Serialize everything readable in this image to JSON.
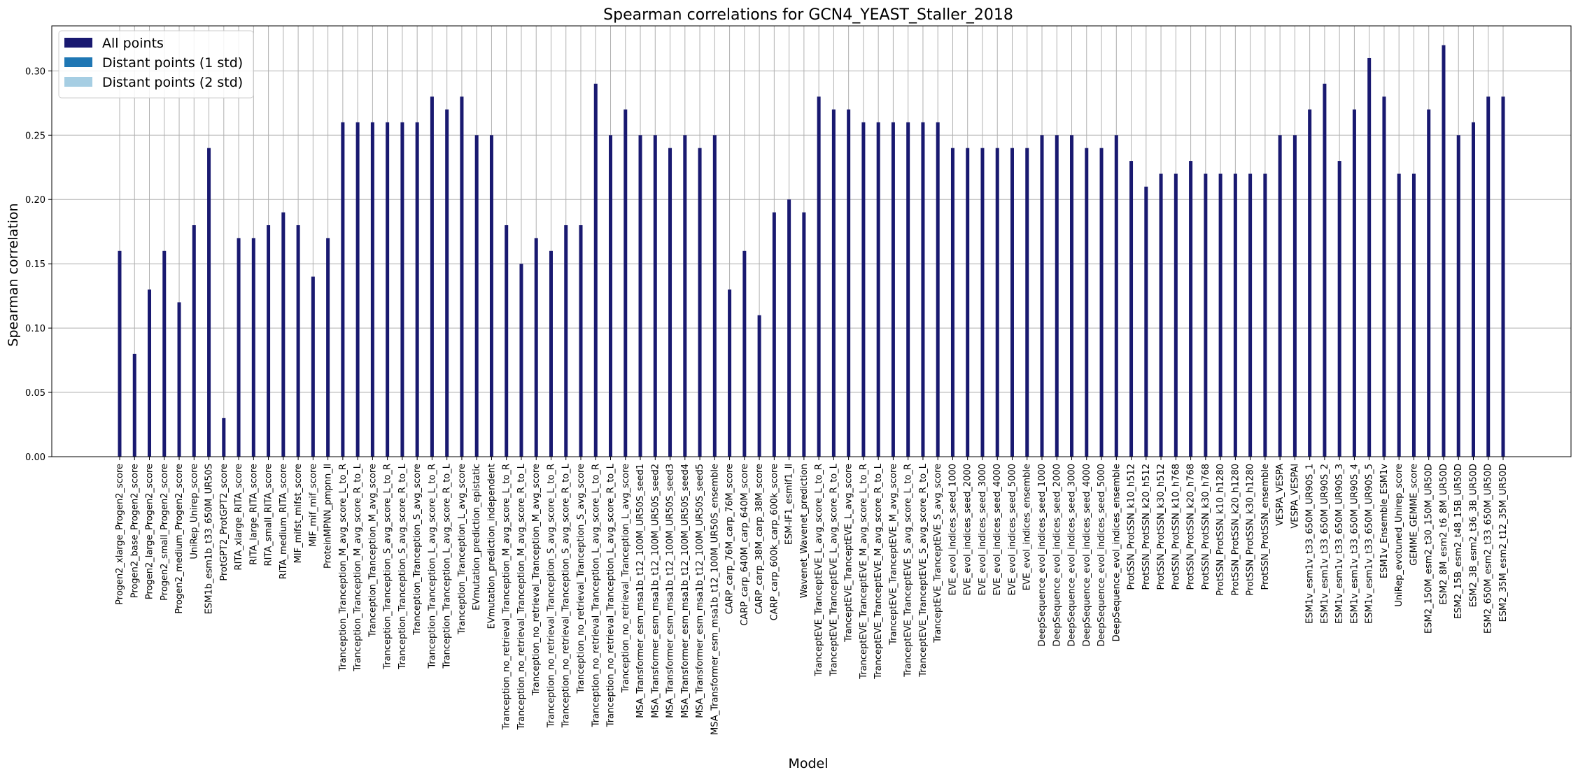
{
  "chart_data": {
    "type": "bar",
    "title": "Spearman correlations for GCN4_YEAST_Staller_2018",
    "xlabel": "Model",
    "ylabel": "Spearman correlation",
    "ylim": [
      0,
      0.335
    ],
    "yticks": [
      "0.00",
      "0.05",
      "0.10",
      "0.15",
      "0.20",
      "0.25",
      "0.30"
    ],
    "grid": true,
    "legend_position": "top-left",
    "colors": {
      "all": "#191970",
      "std1": "#1f77b4",
      "std2": "#a6cee3"
    },
    "series": [
      {
        "name": "All points"
      },
      {
        "name": "Distant points (1 std)"
      },
      {
        "name": "Distant points (2 std)"
      }
    ],
    "categories": [
      "Progen2_xlarge_Progen2_score",
      "Progen2_base_Progen2_score",
      "Progen2_large_Progen2_score",
      "Progen2_small_Progen2_score",
      "Progen2_medium_Progen2_score",
      "UniRep_Unirep_score",
      "ESM1b_esm1b_t33_650M_UR50S",
      "ProtGPT2_ProtGPT2_score",
      "RITA_xlarge_RITA_score",
      "RITA_large_RITA_score",
      "RITA_small_RITA_score",
      "RITA_medium_RITA_score",
      "MIF_mifst_mifst_score",
      "MIF_mif_mif_score",
      "ProteinMPNN_pmpnn_ll",
      "Tranception_Tranception_M_avg_score_L_to_R",
      "Tranception_Tranception_M_avg_score_R_to_L",
      "Tranception_Tranception_M_avg_score",
      "Tranception_Tranception_S_avg_score_L_to_R",
      "Tranception_Tranception_S_avg_score_R_to_L",
      "Tranception_Tranception_S_avg_score",
      "Tranception_Tranception_L_avg_score_L_to_R",
      "Tranception_Tranception_L_avg_score_R_to_L",
      "Tranception_Tranception_L_avg_score",
      "EVmutation_prediction_epistatic",
      "EVmutation_prediction_independent",
      "Tranception_no_retrieval_Tranception_M_avg_score_L_to_R",
      "Tranception_no_retrieval_Tranception_M_avg_score_R_to_L",
      "Tranception_no_retrieval_Tranception_M_avg_score",
      "Tranception_no_retrieval_Tranception_S_avg_score_L_to_R",
      "Tranception_no_retrieval_Tranception_S_avg_score_R_to_L",
      "Tranception_no_retrieval_Tranception_S_avg_score",
      "Tranception_no_retrieval_Tranception_L_avg_score_L_to_R",
      "Tranception_no_retrieval_Tranception_L_avg_score_R_to_L",
      "Tranception_no_retrieval_Tranception_L_avg_score",
      "MSA_Transformer_esm_msa1b_t12_100M_UR50S_seed1",
      "MSA_Transformer_esm_msa1b_t12_100M_UR50S_seed2",
      "MSA_Transformer_esm_msa1b_t12_100M_UR50S_seed3",
      "MSA_Transformer_esm_msa1b_t12_100M_UR50S_seed4",
      "MSA_Transformer_esm_msa1b_t12_100M_UR50S_seed5",
      "MSA_Transformer_esm_msa1b_t12_100M_UR50S_ensemble",
      "CARP_carp_76M_carp_76M_score",
      "CARP_carp_640M_carp_640M_score",
      "CARP_carp_38M_carp_38M_score",
      "CARP_carp_600k_carp_600k_score",
      "ESM-IF1_esmif1_ll",
      "Wavenet_Wavenet_prediction",
      "TranceptEVE_TranceptEVE_L_avg_score_L_to_R",
      "TranceptEVE_TranceptEVE_L_avg_score_R_to_L",
      "TranceptEVE_TranceptEVE_L_avg_score",
      "TranceptEVE_TranceptEVE_M_avg_score_L_to_R",
      "TranceptEVE_TranceptEVE_M_avg_score_R_to_L",
      "TranceptEVE_TranceptEVE_M_avg_score",
      "TranceptEVE_TranceptEVE_S_avg_score_L_to_R",
      "TranceptEVE_TranceptEVE_S_avg_score_R_to_L",
      "TranceptEVE_TranceptEVE_S_avg_score",
      "EVE_evol_indices_seed_1000",
      "EVE_evol_indices_seed_2000",
      "EVE_evol_indices_seed_3000",
      "EVE_evol_indices_seed_4000",
      "EVE_evol_indices_seed_5000",
      "EVE_evol_indices_ensemble",
      "DeepSequence_evol_indices_seed_1000",
      "DeepSequence_evol_indices_seed_2000",
      "DeepSequence_evol_indices_seed_3000",
      "DeepSequence_evol_indices_seed_4000",
      "DeepSequence_evol_indices_seed_5000",
      "DeepSequence_evol_indices_ensemble",
      "ProtSSN_ProtSSN_k10_h512",
      "ProtSSN_ProtSSN_k20_h512",
      "ProtSSN_ProtSSN_k30_h512",
      "ProtSSN_ProtSSN_k10_h768",
      "ProtSSN_ProtSSN_k20_h768",
      "ProtSSN_ProtSSN_k30_h768",
      "ProtSSN_ProtSSN_k10_h1280",
      "ProtSSN_ProtSSN_k20_h1280",
      "ProtSSN_ProtSSN_k30_h1280",
      "ProtSSN_ProtSSN_ensemble",
      "VESPA_VESPA",
      "VESPA_VESPAl",
      "ESM1v_esm1v_t33_650M_UR90S_1",
      "ESM1v_esm1v_t33_650M_UR90S_2",
      "ESM1v_esm1v_t33_650M_UR90S_3",
      "ESM1v_esm1v_t33_650M_UR90S_4",
      "ESM1v_esm1v_t33_650M_UR90S_5",
      "ESM1v_Ensemble_ESM1v",
      "UniRep_evotuned_Unirep_score",
      "GEMME_GEMME_score",
      "ESM2_150M_esm2_t30_150M_UR50D",
      "ESM2_8M_esm2_t6_8M_UR50D",
      "ESM2_15B_esm2_t48_15B_UR50D",
      "ESM2_3B_esm2_t36_3B_UR50D",
      "ESM2_650M_esm2_t33_650M_UR50D",
      "ESM2_35M_esm2_t12_35M_UR50D"
    ],
    "values": [
      0.16,
      0.08,
      0.13,
      0.16,
      0.12,
      0.18,
      0.24,
      0.03,
      0.17,
      0.17,
      0.18,
      0.19,
      0.18,
      0.14,
      0.17,
      0.26,
      0.26,
      0.26,
      0.26,
      0.26,
      0.26,
      0.28,
      0.27,
      0.28,
      0.25,
      0.25,
      0.18,
      0.15,
      0.17,
      0.16,
      0.18,
      0.18,
      0.29,
      0.25,
      0.27,
      0.25,
      0.25,
      0.24,
      0.25,
      0.24,
      0.25,
      0.13,
      0.16,
      0.11,
      0.19,
      0.2,
      0.19,
      0.28,
      0.27,
      0.27,
      0.26,
      0.26,
      0.26,
      0.26,
      0.26,
      0.26,
      0.24,
      0.24,
      0.24,
      0.24,
      0.24,
      0.24,
      0.25,
      0.25,
      0.25,
      0.24,
      0.24,
      0.25,
      0.23,
      0.21,
      0.22,
      0.22,
      0.23,
      0.22,
      0.22,
      0.22,
      0.22,
      0.22,
      0.25,
      0.25,
      0.27,
      0.29,
      0.23,
      0.27,
      0.31,
      0.28,
      0.22,
      0.22,
      0.27,
      0.32,
      0.25,
      0.26,
      0.28,
      0.28
    ]
  }
}
